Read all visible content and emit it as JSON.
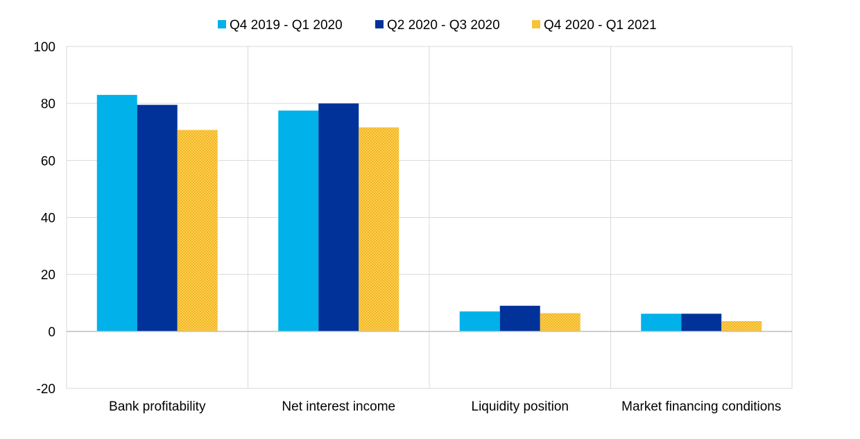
{
  "chart_data": {
    "type": "bar",
    "categories": [
      "Bank profitability",
      "Net interest income",
      "Liquidity position",
      "Market financing conditions"
    ],
    "series": [
      {
        "name": "Q4 2019 - Q1 2020",
        "color": "#00b1ea",
        "values": [
          83,
          77.5,
          7,
          6.2
        ]
      },
      {
        "name": "Q2 2020 - Q3 2020",
        "color": "#003299",
        "values": [
          79.5,
          80,
          9,
          6.2
        ]
      },
      {
        "name": "Q4 2020 - Q1 2021",
        "color": "#ffd04d",
        "pattern": "checker",
        "values": [
          70.7,
          71.6,
          6.4,
          3.6
        ]
      }
    ],
    "yticks": [
      -20,
      0,
      20,
      40,
      60,
      80,
      100
    ],
    "ylim": [
      -20,
      100
    ],
    "grid": true,
    "legend_position": "top-center",
    "title": "",
    "xlabel": "",
    "ylabel": ""
  }
}
